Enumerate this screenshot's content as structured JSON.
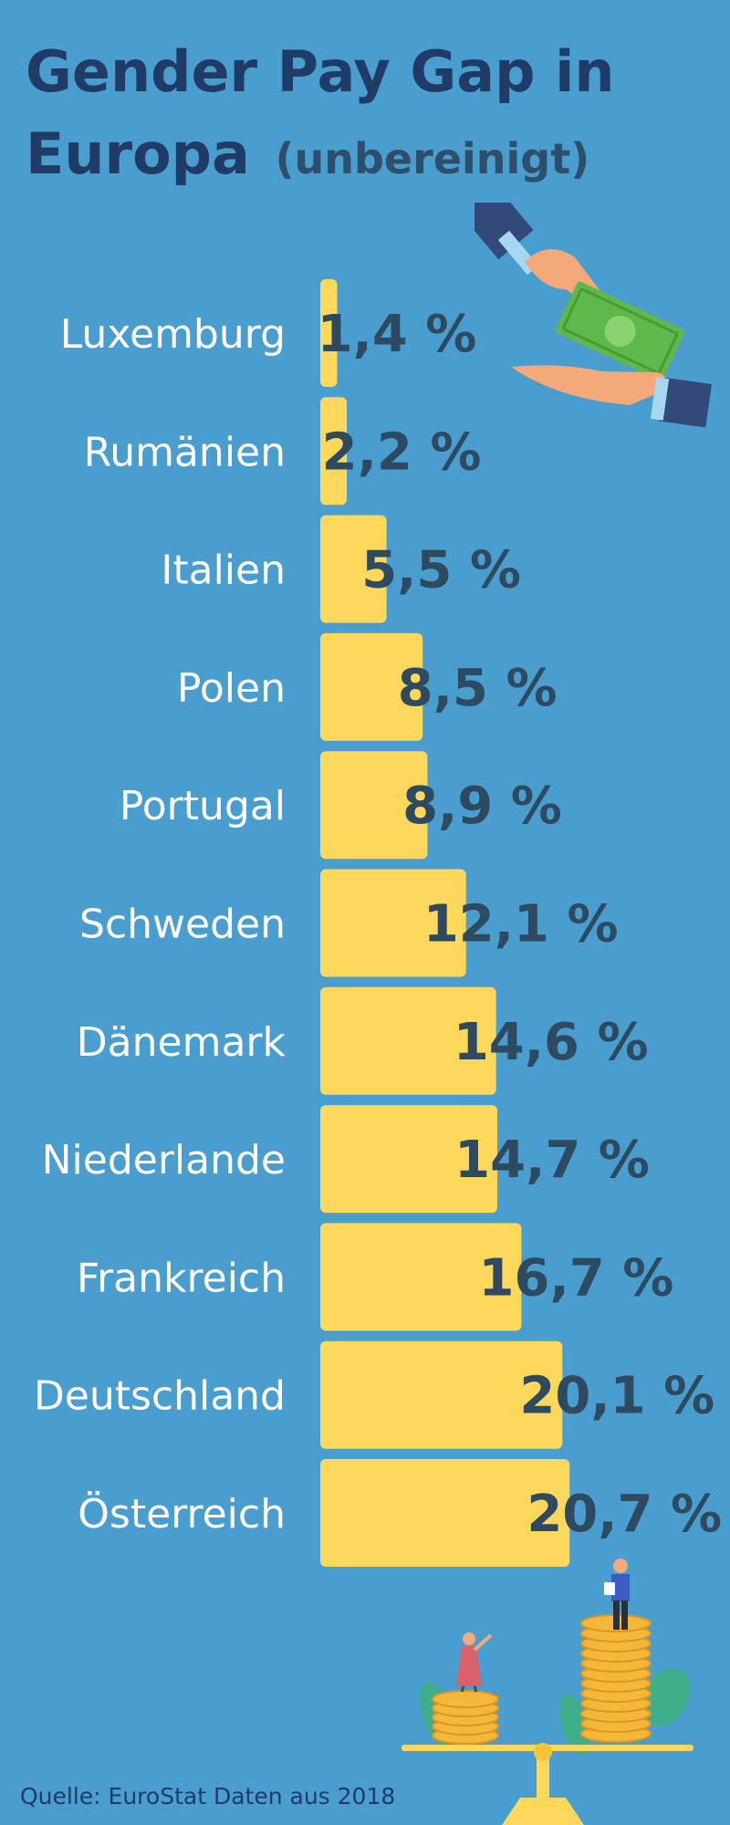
{
  "header": {
    "title_line1": "Gender Pay Gap in",
    "title_line2": "Europa",
    "subtitle": "(unbereinigt)"
  },
  "chart_data": {
    "type": "bar",
    "orientation": "horizontal",
    "categories": [
      "Luxemburg",
      "Rumänien",
      "Italien",
      "Polen",
      "Portugal",
      "Schweden",
      "Dänemark",
      "Niederlande",
      "Frankreich",
      "Deutschland",
      "Österreich"
    ],
    "values": [
      1.4,
      2.2,
      5.5,
      8.5,
      8.9,
      12.1,
      14.6,
      14.7,
      16.7,
      20.1,
      20.7
    ],
    "value_labels": [
      "1,4 %",
      "2,2 %",
      "5,5 %",
      "8,5 %",
      "8,9 %",
      "12,1 %",
      "14,6 %",
      "14,7 %",
      "16,7 %",
      "20,1 %",
      "20,7 %"
    ],
    "unit": "%",
    "colors": {
      "bar": "#fdd85d",
      "value_label": "#2e4a60",
      "category_label": "#ffffff"
    }
  },
  "footer": {
    "source": "Quelle: EuroStat Daten aus 2018"
  },
  "illustrations": {
    "top": "hands-exchanging-money-icon",
    "bottom": "balance-scale-coins-icon"
  },
  "colors": {
    "background": "#4a9ecf",
    "title": "#1f3b66",
    "subtitle": "#2e4f6b"
  }
}
